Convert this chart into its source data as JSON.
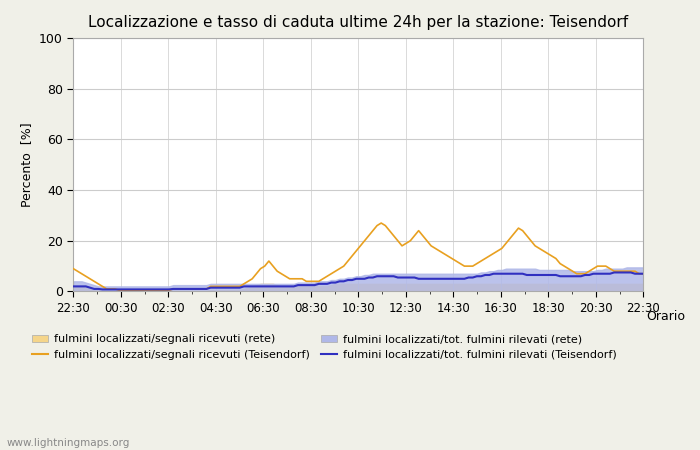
{
  "title": "Localizzazione e tasso di caduta ultime 24h per la stazione: Teisendorf",
  "xlabel": "Orario",
  "ylabel": "Percento  [%]",
  "ylim": [
    0,
    100
  ],
  "yticks": [
    0,
    20,
    40,
    60,
    80,
    100
  ],
  "xtick_labels": [
    "22:30",
    "00:30",
    "02:30",
    "04:30",
    "06:30",
    "08:30",
    "10:30",
    "12:30",
    "14:30",
    "16:30",
    "18:30",
    "20:30",
    "22:30"
  ],
  "watermark": "www.lightningmaps.org",
  "legend_entries": [
    {
      "label": "fulmini localizzati/segnali ricevuti (rete)",
      "type": "fill",
      "color": "#f5d58a"
    },
    {
      "label": "fulmini localizzati/segnali ricevuti (Teisendorf)",
      "type": "line",
      "color": "#e8a020"
    },
    {
      "label": "fulmini localizzati/tot. fulmini rilevati (rete)",
      "type": "fill",
      "color": "#b0b8e8"
    },
    {
      "label": "fulmini localizzati/tot. fulmini rilevati (Teisendorf)",
      "type": "line",
      "color": "#3030c0"
    }
  ],
  "bg_color": "#f0f0e8",
  "plot_bg_color": "#ffffff",
  "grid_color": "#cccccc",
  "orange_line": [
    9,
    8,
    7,
    6,
    5,
    4,
    3,
    2,
    1,
    1,
    1,
    0.5,
    0.5,
    0.5,
    0.5,
    0.5,
    0.5,
    0.5,
    0.5,
    0.5,
    0.5,
    0.5,
    0.5,
    0.5,
    1,
    1,
    1,
    1,
    1,
    1,
    1,
    1,
    1,
    2,
    2,
    2,
    2,
    2,
    2,
    2,
    2,
    3,
    4,
    5,
    7,
    9,
    10,
    12,
    10,
    8,
    7,
    6,
    5,
    5,
    5,
    5,
    4,
    4,
    4,
    4,
    5,
    6,
    7,
    8,
    9,
    10,
    12,
    14,
    16,
    18,
    20,
    22,
    24,
    26,
    27,
    26,
    24,
    22,
    20,
    18,
    19,
    20,
    22,
    24,
    22,
    20,
    18,
    17,
    16,
    15,
    14,
    13,
    12,
    11,
    10,
    10,
    10,
    11,
    12,
    13,
    14,
    15,
    16,
    17,
    19,
    21,
    23,
    25,
    24,
    22,
    20,
    18,
    17,
    16,
    15,
    14,
    13,
    11,
    10,
    9,
    8,
    7,
    7,
    7,
    8,
    9,
    10,
    10,
    10,
    9,
    8,
    8,
    8,
    8,
    8,
    8,
    7,
    7,
    7,
    7,
    7,
    7
  ],
  "orange_fill": [
    2,
    2,
    2,
    1.5,
    1,
    0.5,
    0.3,
    0.2,
    0.2,
    0.2,
    0.2,
    0.2,
    0.2,
    0.2,
    0.2,
    0.2,
    0.2,
    0.2,
    0.2,
    0.2,
    0.2,
    0.2,
    0.2,
    0.2,
    0.2,
    0.2,
    0.2,
    0.2,
    0.2,
    0.2,
    0.2,
    0.2,
    0.2,
    0.5,
    0.5,
    0.5,
    0.5,
    0.5,
    0.5,
    0.5,
    0.5,
    1,
    1.5,
    2,
    2.5,
    3,
    3,
    3,
    3,
    2.5,
    2,
    2,
    2,
    2,
    2,
    2,
    2,
    2,
    2,
    2,
    2,
    2,
    2.5,
    3,
    3,
    3,
    3,
    3,
    3,
    3,
    3,
    3,
    3,
    3,
    3,
    3,
    3,
    3,
    3,
    3,
    3,
    3,
    3,
    3,
    3,
    3,
    3,
    3,
    3,
    3,
    3,
    3,
    3,
    3,
    3,
    3,
    3,
    3,
    3,
    3,
    3,
    3,
    3,
    3,
    3,
    3,
    3,
    3,
    3,
    3,
    3,
    3,
    3,
    3,
    3,
    3,
    3,
    3,
    3,
    3,
    3,
    3,
    3,
    3,
    3,
    3,
    3,
    3,
    3,
    3,
    3,
    3,
    3,
    3,
    3,
    3,
    3,
    3
  ],
  "blue_line": [
    2,
    2,
    2,
    2,
    1.5,
    1,
    1,
    0.8,
    0.8,
    0.8,
    0.8,
    0.8,
    0.8,
    0.8,
    0.8,
    0.8,
    0.8,
    0.8,
    0.8,
    0.8,
    0.8,
    0.8,
    0.8,
    0.8,
    1,
    1,
    1,
    1,
    1,
    1,
    1,
    1,
    1,
    1.5,
    1.5,
    1.5,
    1.5,
    1.5,
    1.5,
    1.5,
    1.5,
    2,
    2,
    2,
    2,
    2,
    2,
    2,
    2,
    2,
    2,
    2,
    2,
    2,
    2.5,
    2.5,
    2.5,
    2.5,
    2.5,
    3,
    3,
    3,
    3.5,
    3.5,
    4,
    4,
    4.5,
    4.5,
    5,
    5,
    5,
    5.5,
    5.5,
    6,
    6,
    6,
    6,
    6,
    5.5,
    5.5,
    5.5,
    5.5,
    5.5,
    5,
    5,
    5,
    5,
    5,
    5,
    5,
    5,
    5,
    5,
    5,
    5,
    5.5,
    5.5,
    6,
    6,
    6.5,
    6.5,
    7,
    7,
    7,
    7,
    7,
    7,
    7,
    7,
    6.5,
    6.5,
    6.5,
    6.5,
    6.5,
    6.5,
    6.5,
    6.5,
    6,
    6,
    6,
    6,
    6,
    6,
    6.5,
    6.5,
    7,
    7,
    7,
    7,
    7,
    7.5,
    7.5,
    7.5,
    7.5,
    7.5,
    7,
    7,
    7,
    7,
    7,
    7,
    7
  ],
  "blue_fill": [
    4,
    4,
    4,
    3.5,
    3,
    2.5,
    2,
    2,
    2,
    2,
    2,
    2,
    2,
    2,
    2,
    2,
    2,
    2,
    2,
    2,
    2,
    2,
    2,
    2,
    2.5,
    2.5,
    2.5,
    2.5,
    2.5,
    2.5,
    2.5,
    2.5,
    2.5,
    3,
    3,
    3,
    3,
    3,
    3,
    3,
    3,
    3,
    3,
    3,
    3,
    3,
    3,
    3,
    3,
    3,
    3,
    3,
    3,
    3,
    3.5,
    3.5,
    3.5,
    3.5,
    3.5,
    4,
    4,
    4,
    4.5,
    4.5,
    5,
    5,
    5.5,
    5.5,
    6,
    6,
    6.5,
    6.5,
    7,
    7,
    7,
    7,
    7,
    7,
    7,
    7,
    7,
    7,
    7,
    7,
    7,
    7,
    7,
    7,
    7,
    7,
    7,
    7,
    7,
    7,
    7,
    7,
    7,
    7,
    7.5,
    7.5,
    8,
    8,
    8.5,
    8.5,
    9,
    9,
    9,
    9,
    9,
    9,
    9,
    9,
    8.5,
    8.5,
    8.5,
    8.5,
    8.5,
    8.5,
    8.5,
    8.5,
    8,
    8,
    8,
    8,
    8,
    8,
    8.5,
    8.5,
    9,
    9,
    9,
    9,
    9,
    9.5,
    9.5,
    9.5,
    9.5,
    9.5,
    9,
    9,
    9,
    9,
    9,
    9,
    9
  ]
}
